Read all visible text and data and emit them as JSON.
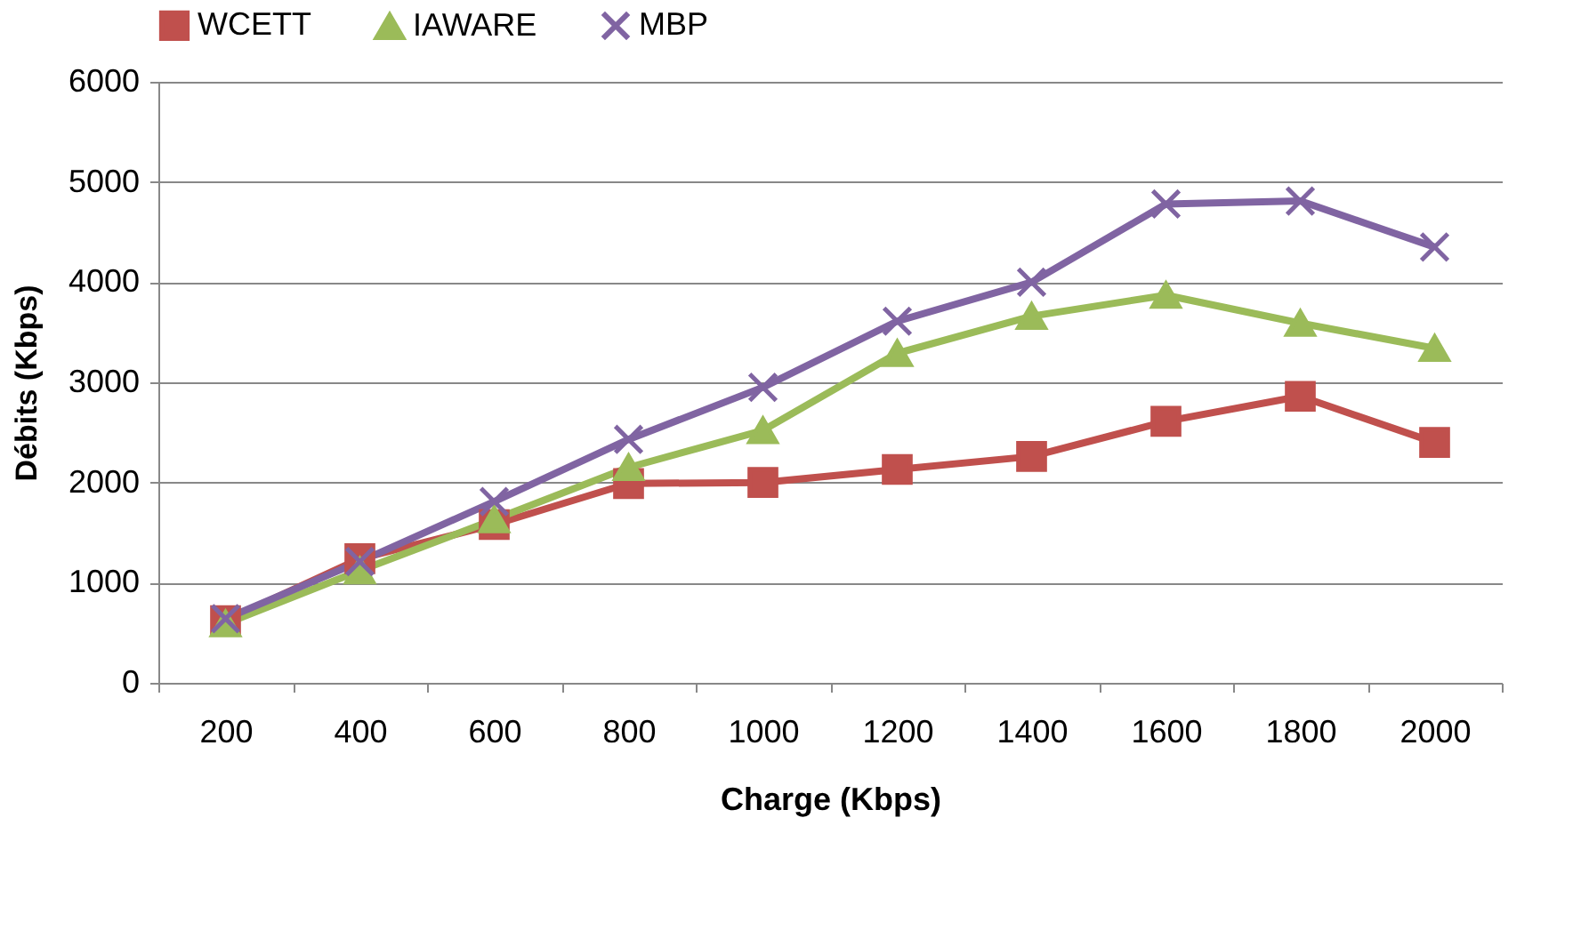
{
  "chart_data": {
    "type": "line",
    "xlabel": "Charge (Kbps)",
    "ylabel": "Débits (Kbps)",
    "categories": [
      "200",
      "400",
      "600",
      "800",
      "1000",
      "1200",
      "1400",
      "1600",
      "1800",
      "2000"
    ],
    "series": [
      {
        "name": "WCETT",
        "color": "#c0504d",
        "marker": "square",
        "values": [
          620,
          1240,
          1580,
          1990,
          2000,
          2130,
          2260,
          2610,
          2860,
          2400
        ]
      },
      {
        "name": "IAWARE",
        "color": "#9bbb59",
        "marker": "triangle",
        "values": [
          590,
          1120,
          1630,
          2150,
          2520,
          3290,
          3660,
          3870,
          3590,
          3340
        ]
      },
      {
        "name": "MBP",
        "color": "#8064a2",
        "marker": "cross",
        "values": [
          640,
          1210,
          1810,
          2430,
          2950,
          3610,
          4000,
          4780,
          4810,
          4350
        ]
      }
    ],
    "ylim": [
      0,
      6000
    ],
    "yticks": [
      0,
      1000,
      2000,
      3000,
      4000,
      5000,
      6000
    ],
    "grid": "y",
    "legend": "top"
  }
}
